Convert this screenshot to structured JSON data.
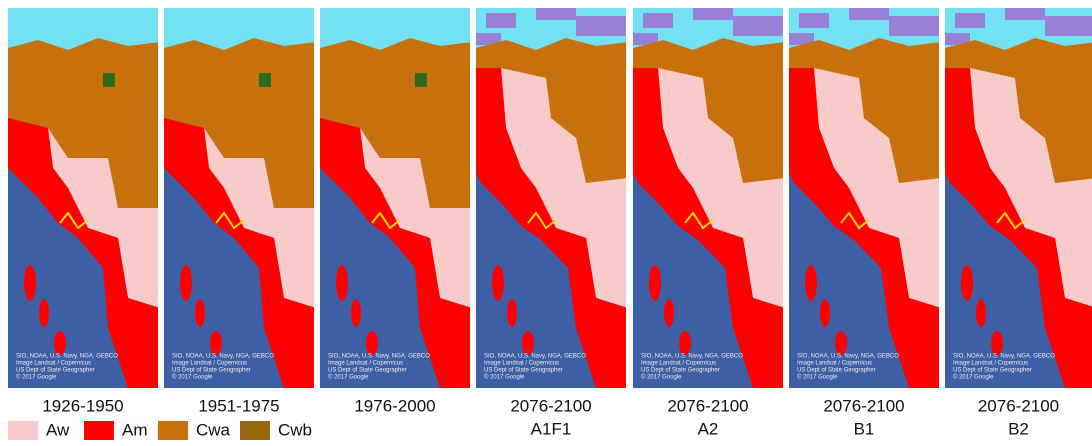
{
  "panels": [
    {
      "period": "1926-1950"
    },
    {
      "period": "1951-1975"
    },
    {
      "period": "1976-2000"
    },
    {
      "period": "2076-2100",
      "scenario": "A1F1"
    },
    {
      "period": "2076-2100",
      "scenario": "A2"
    },
    {
      "period": "2076-2100",
      "scenario": "B1"
    },
    {
      "period": "2076-2100",
      "scenario": "B2"
    }
  ],
  "attribution": [
    "SIO, NOAA, U.S. Navy, NGA, GEBCO",
    "Image Landsat / Copernicus",
    "US Dept of State Geographer",
    "© 2017 Google"
  ],
  "legend": [
    {
      "label": "Aw",
      "color": "#f9caca"
    },
    {
      "label": "Am",
      "color": "#ff0000"
    },
    {
      "label": "Cwa",
      "color": "#c8700c"
    },
    {
      "label": "Cwb",
      "color": "#98690f"
    }
  ]
}
